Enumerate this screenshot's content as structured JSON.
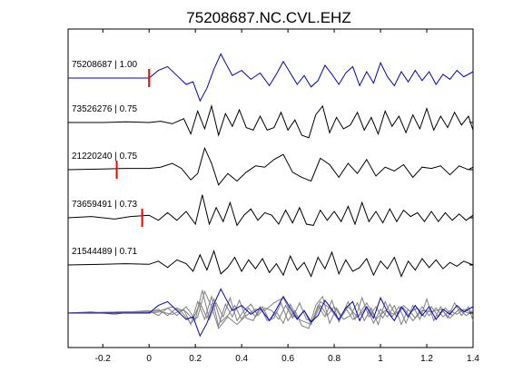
{
  "chart_data": {
    "type": "line",
    "title": "75208687.NC.CVL.EHZ",
    "xlabel": "",
    "ylabel": "",
    "xlim": [
      -0.35,
      1.4
    ],
    "xticks": [
      -0.2,
      0,
      0.2,
      0.4,
      0.6,
      0.8,
      1,
      1.2,
      1.4
    ],
    "xtick_labels": [
      "-0.2",
      "0",
      "0.2",
      "0.4",
      "0.6",
      "0.8",
      "1",
      "1.2",
      "1.4"
    ],
    "grid": false,
    "colors": {
      "template": "#0000cc",
      "trace": "#000000",
      "stack": "#808080",
      "pick": "#ff0000"
    },
    "traces": [
      {
        "label": "75208687 | 1.00",
        "color": "template",
        "pick_time": 0,
        "x": [
          -0.35,
          -0.1,
          0,
          0.04,
          0.08,
          0.12,
          0.16,
          0.19,
          0.22,
          0.25,
          0.28,
          0.31,
          0.33,
          0.36,
          0.4,
          0.44,
          0.48,
          0.52,
          0.55,
          0.58,
          0.61,
          0.64,
          0.67,
          0.7,
          0.73,
          0.76,
          0.79,
          0.82,
          0.85,
          0.88,
          0.91,
          0.94,
          0.97,
          1.0,
          1.03,
          1.06,
          1.09,
          1.12,
          1.15,
          1.18,
          1.21,
          1.24,
          1.27,
          1.3,
          1.33,
          1.36,
          1.4
        ],
        "y": [
          0,
          0,
          0,
          0.6,
          0.9,
          0.2,
          -0.5,
          -0.3,
          -1.8,
          -0.8,
          0.7,
          1.9,
          1.2,
          0.2,
          0.6,
          -0.1,
          0.4,
          -0.6,
          0.3,
          1.3,
          0.4,
          -0.5,
          0.2,
          -0.7,
          -0.2,
          1.0,
          0.3,
          -0.5,
          0.4,
          0.9,
          -0.6,
          0.5,
          -0.4,
          1.2,
          0.1,
          -0.6,
          0.5,
          -0.3,
          0.6,
          -0.2,
          0.5,
          -0.5,
          0.3,
          -0.1,
          0.6,
          0.1,
          0.5
        ]
      },
      {
        "label": "73526276 | 0.75",
        "color": "trace",
        "pick_time": null,
        "x": [
          -0.35,
          -0.2,
          -0.1,
          0,
          0.05,
          0.1,
          0.15,
          0.18,
          0.21,
          0.24,
          0.27,
          0.3,
          0.33,
          0.36,
          0.39,
          0.42,
          0.45,
          0.48,
          0.51,
          0.54,
          0.57,
          0.6,
          0.63,
          0.66,
          0.69,
          0.72,
          0.75,
          0.78,
          0.81,
          0.84,
          0.87,
          0.9,
          0.93,
          0.96,
          0.99,
          1.02,
          1.05,
          1.08,
          1.11,
          1.14,
          1.17,
          1.2,
          1.23,
          1.26,
          1.29,
          1.32,
          1.35,
          1.38,
          1.4
        ],
        "y": [
          0,
          0,
          0.05,
          0,
          0.1,
          -0.1,
          0.3,
          -0.9,
          0.9,
          -0.5,
          1.3,
          -1.0,
          0.7,
          -0.3,
          1.0,
          -0.4,
          -0.6,
          0.5,
          -0.6,
          -0.4,
          0.8,
          -0.6,
          0.2,
          -1.0,
          -1.2,
          0.6,
          1.3,
          -0.8,
          0.4,
          -0.5,
          -0.2,
          0.8,
          -0.6,
          0.4,
          -0.9,
          0.9,
          -0.3,
          0.5,
          -0.8,
          0.6,
          -0.5,
          1.1,
          -0.6,
          0.5,
          -0.4,
          0.8,
          -0.2,
          0.5,
          -0.6
        ]
      },
      {
        "label": "21220240 | 0.75",
        "color": "trace",
        "pick_time": -0.14,
        "x": [
          -0.35,
          -0.2,
          -0.1,
          0,
          0.05,
          0.1,
          0.14,
          0.18,
          0.21,
          0.24,
          0.27,
          0.3,
          0.34,
          0.38,
          0.42,
          0.46,
          0.5,
          0.54,
          0.58,
          0.62,
          0.66,
          0.7,
          0.74,
          0.78,
          0.82,
          0.86,
          0.9,
          0.94,
          0.98,
          1.02,
          1.06,
          1.1,
          1.14,
          1.18,
          1.22,
          1.26,
          1.3,
          1.34,
          1.38,
          1.4
        ],
        "y": [
          0,
          0.05,
          0.1,
          0.1,
          0.2,
          0.5,
          0.1,
          -0.8,
          -0.3,
          1.7,
          0.5,
          -1.2,
          -0.3,
          -0.9,
          -0.2,
          0.3,
          0.2,
          0.8,
          1.2,
          -0.2,
          -0.6,
          -0.9,
          0.9,
          0.4,
          -0.6,
          0.5,
          -0.3,
          0.8,
          -0.5,
          0.2,
          -0.1,
          0.4,
          -0.6,
          0.2,
          0.1,
          0.3,
          -0.4,
          0.3,
          0,
          0.2
        ]
      },
      {
        "label": "73659491 | 0.73",
        "color": "trace",
        "pick_time": -0.03,
        "x": [
          -0.35,
          -0.25,
          -0.15,
          -0.08,
          0,
          0.04,
          0.08,
          0.12,
          0.16,
          0.2,
          0.23,
          0.26,
          0.29,
          0.32,
          0.35,
          0.38,
          0.41,
          0.44,
          0.47,
          0.5,
          0.53,
          0.56,
          0.59,
          0.62,
          0.65,
          0.68,
          0.71,
          0.74,
          0.77,
          0.8,
          0.83,
          0.86,
          0.89,
          0.92,
          0.95,
          0.98,
          1.01,
          1.04,
          1.07,
          1.1,
          1.13,
          1.16,
          1.19,
          1.22,
          1.25,
          1.28,
          1.31,
          1.34,
          1.37,
          1.4
        ],
        "y": [
          0,
          0.1,
          -0.1,
          0.1,
          0.2,
          -0.2,
          0.4,
          -0.2,
          0.5,
          -0.5,
          1.8,
          -0.5,
          0.8,
          -0.3,
          1.2,
          -0.6,
          0.2,
          0.7,
          -0.2,
          0.4,
          0.2,
          -0.5,
          0.6,
          -0.4,
          0.8,
          -0.5,
          -0.6,
          0.6,
          -0.2,
          0.5,
          -0.3,
          0.9,
          -0.5,
          1.2,
          -0.3,
          0.5,
          -0.4,
          0.7,
          -0.3,
          0.6,
          0.1,
          0.4,
          -0.3,
          0.5,
          -0.3,
          0.4,
          -0.2,
          0.3,
          -0.2,
          0.2
        ]
      },
      {
        "label": "21544489 | 0.71",
        "color": "trace",
        "pick_time": null,
        "x": [
          -0.35,
          -0.2,
          -0.1,
          0,
          0.04,
          0.08,
          0.12,
          0.16,
          0.19,
          0.22,
          0.25,
          0.28,
          0.31,
          0.34,
          0.37,
          0.4,
          0.43,
          0.46,
          0.49,
          0.52,
          0.55,
          0.58,
          0.61,
          0.64,
          0.67,
          0.7,
          0.73,
          0.76,
          0.79,
          0.82,
          0.85,
          0.88,
          0.91,
          0.94,
          0.97,
          1.0,
          1.03,
          1.06,
          1.09,
          1.12,
          1.15,
          1.18,
          1.21,
          1.24,
          1.27,
          1.3,
          1.33,
          1.36,
          1.4
        ],
        "y": [
          0,
          0.05,
          0.1,
          0.05,
          0.3,
          -0.2,
          0.4,
          0.1,
          -0.5,
          0.8,
          -0.4,
          1.1,
          -0.7,
          -0.2,
          0.6,
          -0.5,
          0.4,
          -0.3,
          0.5,
          -0.6,
          0.1,
          -0.8,
          0.7,
          -0.4,
          0.2,
          -0.9,
          0.6,
          -0.3,
          1.0,
          -0.7,
          0.4,
          -0.5,
          -0.2,
          0.5,
          -0.8,
          0.3,
          -0.3,
          0.6,
          -0.9,
          0.3,
          -0.4,
          0.5,
          -0.2,
          0.4,
          -0.3,
          0.2,
          -0.1,
          0.3,
          0
        ]
      }
    ],
    "stack_overlay": {
      "traces_overlaid": 5,
      "template_color": "template",
      "others_color": "stack"
    }
  }
}
